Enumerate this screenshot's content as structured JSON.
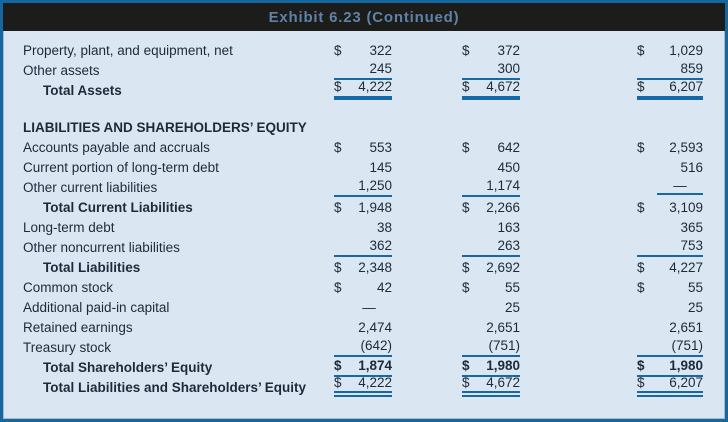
{
  "title": "Exhibit 6.23 (Continued)",
  "colors": {
    "rule_blue": "#1668a7",
    "panel_border_blue": "#15689f",
    "body_background": "#dbe6f3",
    "text_ink": "#1c2b3a",
    "title_background": "#1c1c1a",
    "title_text": "#5e82a8"
  },
  "table": {
    "rows": [
      {
        "label": "Property, plant, and equipment, net",
        "style": "normal",
        "rule": "none",
        "cells": [
          [
            "$",
            "322"
          ],
          [
            "$",
            "372"
          ],
          [
            "$",
            "1,029"
          ]
        ]
      },
      {
        "label": "Other assets",
        "style": "normal",
        "rule": "single",
        "cells": [
          [
            "",
            "245"
          ],
          [
            "",
            "300"
          ],
          [
            "",
            "859"
          ]
        ]
      },
      {
        "label": "Total Assets",
        "style": "total",
        "rule": "thick",
        "cells": [
          [
            "$",
            "4,222"
          ],
          [
            "$",
            "4,672"
          ],
          [
            "$",
            "6,207"
          ]
        ]
      },
      {
        "type": "spacer"
      },
      {
        "label": "LIABILITIES AND SHAREHOLDERS’ EQUITY",
        "style": "section",
        "rule": "none",
        "cells": []
      },
      {
        "label": "Accounts payable and accruals",
        "style": "normal",
        "rule": "none",
        "cells": [
          [
            "$",
            "553"
          ],
          [
            "$",
            "642"
          ],
          [
            "$",
            "2,593"
          ]
        ]
      },
      {
        "label": "Current portion of long-term debt",
        "style": "normal",
        "rule": "none",
        "cells": [
          [
            "",
            "145"
          ],
          [
            "",
            "450"
          ],
          [
            "",
            "516"
          ]
        ]
      },
      {
        "label": "Other current liabilities",
        "style": "normal",
        "rule": "single",
        "cells": [
          [
            "",
            "1,250"
          ],
          [
            "",
            "1,174"
          ],
          [
            "",
            "—"
          ]
        ]
      },
      {
        "label": "Total Current Liabilities",
        "style": "total",
        "rule": "none",
        "cells": [
          [
            "$",
            "1,948"
          ],
          [
            "$",
            "2,266"
          ],
          [
            "$",
            "3,109"
          ]
        ]
      },
      {
        "label": "Long-term debt",
        "style": "normal",
        "rule": "none",
        "cells": [
          [
            "",
            "38"
          ],
          [
            "",
            "163"
          ],
          [
            "",
            "365"
          ]
        ]
      },
      {
        "label": "Other noncurrent liabilities",
        "style": "normal",
        "rule": "single",
        "cells": [
          [
            "",
            "362"
          ],
          [
            "",
            "263"
          ],
          [
            "",
            "753"
          ]
        ]
      },
      {
        "label": "Total Liabilities",
        "style": "total",
        "rule": "none",
        "cells": [
          [
            "$",
            "2,348"
          ],
          [
            "$",
            "2,692"
          ],
          [
            "$",
            "4,227"
          ]
        ]
      },
      {
        "label": "Common stock",
        "style": "normal",
        "rule": "none",
        "cells": [
          [
            "$",
            "42"
          ],
          [
            "$",
            "55"
          ],
          [
            "$",
            "55"
          ]
        ]
      },
      {
        "label": "Additional paid-in capital",
        "style": "normal",
        "rule": "none",
        "cells": [
          [
            "",
            "—"
          ],
          [
            "",
            "25"
          ],
          [
            "",
            "25"
          ]
        ]
      },
      {
        "label": "Retained earnings",
        "style": "normal",
        "rule": "none",
        "cells": [
          [
            "",
            "2,474"
          ],
          [
            "",
            "2,651"
          ],
          [
            "",
            "2,651"
          ]
        ]
      },
      {
        "label": "Treasury stock",
        "style": "normal",
        "rule": "single",
        "cells": [
          [
            "",
            "(642)"
          ],
          [
            "",
            "(751)"
          ],
          [
            "",
            "(751)"
          ]
        ]
      },
      {
        "label": "Total Shareholders’ Equity",
        "style": "total",
        "rule": "single",
        "boldValues": true,
        "cells": [
          [
            "$",
            "1,874"
          ],
          [
            "$",
            "1,980"
          ],
          [
            "$",
            "1,980"
          ]
        ]
      },
      {
        "label": "Total Liabilities and Shareholders’ Equity",
        "style": "total",
        "rule": "double",
        "cells": [
          [
            "$",
            "4,222"
          ],
          [
            "$",
            "4,672"
          ],
          [
            "$",
            "6,207"
          ]
        ]
      }
    ]
  }
}
